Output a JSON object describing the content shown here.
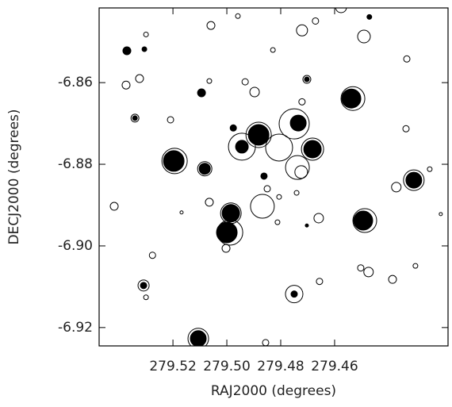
{
  "chart_data": {
    "type": "scatter",
    "xlabel": "RAJ2000 (degrees)",
    "ylabel": "DECJ2000 (degrees)",
    "xlim": [
      279.5474,
      279.4179
    ],
    "ylim": [
      -6.9245,
      -6.8417
    ],
    "xticks": [
      279.52,
      {
        "value": 279.5,
        "label": "279.50"
      },
      279.48,
      279.46
    ],
    "yticks": [
      -6.86,
      -6.88,
      {
        "value": -6.9,
        "label": "-6.90"
      },
      -6.92
    ],
    "series": [
      {
        "color": "#000000",
        "filled": true,
        "x": [
          279.5197,
          279.5,
          279.4985,
          279.4882,
          279.4944,
          279.4735,
          279.4682,
          279.4538,
          279.4494,
          279.4306,
          279.5082,
          279.5106,
          279.5371,
          279.5094,
          279.4976,
          279.5309,
          279.475,
          279.4862,
          279.4471,
          279.4703,
          279.5341,
          279.4703,
          279.5306
        ],
        "y": [
          -6.8792,
          -6.8967,
          -6.892,
          -6.8728,
          -6.8757,
          -6.8699,
          -6.8763,
          -6.8639,
          -6.8938,
          -6.8839,
          -6.8811,
          -6.9227,
          -6.8522,
          -6.8625,
          -6.8711,
          -6.9097,
          -6.9118,
          -6.8829,
          -6.8439,
          -6.8592,
          -6.8687,
          -6.895,
          -6.8518
        ],
        "sizes": [
          13,
          13,
          11,
          13,
          8,
          10,
          11,
          12,
          12,
          10,
          7,
          10,
          5,
          5,
          4,
          4,
          4,
          4,
          3,
          3,
          3,
          2,
          3
        ]
      },
      {
        "color": "#000000",
        "filled": false,
        "x": [
          279.4806,
          279.4868,
          279.475,
          279.4944,
          279.4738,
          279.4532,
          279.4488,
          279.5194,
          279.4306,
          279.4988,
          279.5106,
          279.4721,
          279.4491,
          279.5059,
          279.53,
          279.5324,
          279.5374,
          279.5418,
          279.5209,
          279.5065,
          279.4897,
          279.4932,
          279.4721,
          279.4724,
          279.4806,
          279.4659,
          279.4371,
          279.4335,
          279.4332,
          279.4247,
          279.4474,
          279.4503,
          279.4656,
          279.4385,
          279.43,
          279.5003,
          279.5276,
          279.53,
          279.4206,
          279.5065,
          279.5168,
          279.4856,
          279.4576,
          279.4671,
          279.4959,
          279.4812,
          279.485,
          279.4829,
          279.4741,
          279.5309,
          279.475,
          279.4682,
          279.4882,
          279.4985,
          279.5341,
          279.4703,
          279.5082
        ],
        "y": [
          -6.8759,
          -6.8903,
          -6.8701,
          -6.8757,
          -6.8808,
          -6.8639,
          -6.8938,
          -6.8792,
          -6.8839,
          -6.8967,
          -6.9227,
          -6.8472,
          -6.8487,
          -6.846,
          -6.8482,
          -6.859,
          -6.8606,
          -6.8903,
          -6.8691,
          -6.8596,
          -6.8623,
          -6.8598,
          -6.8647,
          -6.8819,
          -6.888,
          -6.8932,
          -6.8856,
          -6.8713,
          -6.8542,
          -6.8812,
          -6.9064,
          -6.9054,
          -6.9087,
          -6.9082,
          -6.9049,
          -6.9006,
          -6.9023,
          -6.9126,
          -6.8922,
          -6.8893,
          -6.8918,
          -6.9237,
          -6.8415,
          -6.8449,
          -6.8437,
          -6.8942,
          -6.886,
          -6.852,
          -6.887,
          -6.9097,
          -6.9118,
          -6.8763,
          -6.8728,
          -6.892,
          -6.8687,
          -6.8592,
          -6.8811
        ],
        "sizes": [
          17,
          15,
          19,
          17,
          15,
          15,
          15,
          16,
          13,
          16,
          13,
          7,
          8,
          5,
          3,
          5,
          5,
          5,
          4,
          3,
          6,
          4,
          4,
          8,
          3,
          6,
          6,
          4,
          4,
          3,
          6,
          4,
          4,
          5,
          3,
          5,
          4,
          3,
          2,
          5,
          2,
          4,
          7,
          4,
          3,
          3,
          4,
          3,
          3,
          7,
          11,
          14,
          16,
          13,
          5,
          5,
          9
        ]
      }
    ]
  }
}
